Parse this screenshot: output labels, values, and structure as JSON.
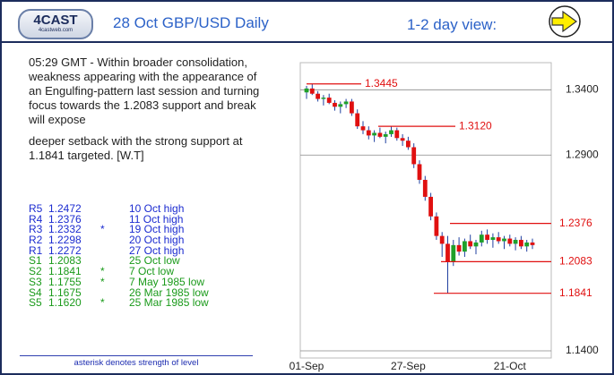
{
  "header": {
    "logo": "4CAST",
    "logo_sub": "4castweb.com",
    "title": "28 Oct GBP/USD Daily",
    "view": "1-2 day view:"
  },
  "commentary": [
    "05:29 GMT - Within broader consolidation, weakness appearing with the appearance of an Engulfing-pattern last session and turning focus towards the 1.2083 support and break will expose",
    "deeper setback with the strong support at 1.1841 targeted. [W.T]"
  ],
  "levels_table": {
    "rows": [
      {
        "level": "R5",
        "price": "1.2472",
        "note": "10 Oct high"
      },
      {
        "level": "R4",
        "price": "1.2376",
        "note": "11 Oct high"
      },
      {
        "level": "R3",
        "price": "1.2332",
        "star": "*",
        "note": "19 Oct high"
      },
      {
        "level": "R2",
        "price": "1.2298",
        "note": "20 Oct high"
      },
      {
        "level": "R1",
        "price": "1.2272",
        "note": "27 Oct high"
      },
      {
        "level": "S1",
        "price": "1.2083",
        "note": "25 Oct low"
      },
      {
        "level": "S2",
        "price": "1.1841",
        "star": "*",
        "note": "7 Oct low"
      },
      {
        "level": "S3",
        "price": "1.1755",
        "star": "*",
        "note": "7 May 1985 low"
      },
      {
        "level": "S4",
        "price": "1.1675",
        "note": "26 Mar 1985 low"
      },
      {
        "level": "S5",
        "price": "1.1620",
        "star": "*",
        "note": "25 Mar 1985 low"
      }
    ]
  },
  "footnote": "asterisk denotes strength of level",
  "chart_data": {
    "type": "candlestick",
    "categories": [
      "01-Sep",
      null,
      null,
      null,
      null,
      null,
      null,
      null,
      null,
      null,
      null,
      null,
      null,
      null,
      null,
      null,
      null,
      null,
      "27-Sep",
      null,
      null,
      null,
      null,
      null,
      null,
      null,
      null,
      null,
      null,
      null,
      null,
      null,
      null,
      null,
      null,
      null,
      "21-Oct",
      null,
      null,
      null,
      null
    ],
    "open": [
      1.338,
      1.341,
      1.337,
      1.333,
      1.334,
      1.33,
      1.327,
      1.329,
      1.331,
      1.322,
      1.312,
      1.309,
      1.305,
      1.307,
      1.304,
      1.306,
      1.309,
      1.303,
      1.301,
      1.296,
      1.283,
      1.271,
      1.258,
      1.243,
      1.228,
      1.222,
      1.208,
      1.221,
      1.216,
      1.224,
      1.22,
      1.223,
      1.229,
      1.225,
      1.227,
      1.224,
      1.226,
      1.222,
      1.225,
      1.22,
      1.223
    ],
    "high": [
      1.343,
      1.3445,
      1.339,
      1.336,
      1.337,
      1.332,
      1.331,
      1.333,
      1.333,
      1.325,
      1.316,
      1.312,
      1.309,
      1.311,
      1.308,
      1.312,
      1.311,
      1.306,
      1.304,
      1.299,
      1.286,
      1.274,
      1.261,
      1.246,
      1.231,
      1.228,
      1.225,
      1.227,
      1.226,
      1.229,
      1.225,
      1.232,
      1.233,
      1.23,
      1.231,
      1.228,
      1.229,
      1.227,
      1.228,
      1.225,
      1.226
    ],
    "low": [
      1.333,
      1.336,
      1.331,
      1.328,
      1.329,
      1.324,
      1.322,
      1.326,
      1.32,
      1.31,
      1.306,
      1.302,
      1.3,
      1.303,
      1.299,
      1.304,
      1.301,
      1.297,
      1.294,
      1.28,
      1.268,
      1.255,
      1.24,
      1.225,
      1.212,
      1.1841,
      1.205,
      1.213,
      1.212,
      1.218,
      1.214,
      1.22,
      1.222,
      1.219,
      1.222,
      1.218,
      1.22,
      1.217,
      1.218,
      1.216,
      1.218
    ],
    "close": [
      1.341,
      1.337,
      1.333,
      1.334,
      1.33,
      1.327,
      1.329,
      1.331,
      1.322,
      1.312,
      1.309,
      1.305,
      1.307,
      1.304,
      1.306,
      1.309,
      1.303,
      1.301,
      1.296,
      1.283,
      1.271,
      1.258,
      1.243,
      1.228,
      1.222,
      1.208,
      1.221,
      1.216,
      1.224,
      1.22,
      1.223,
      1.229,
      1.225,
      1.227,
      1.224,
      1.226,
      1.222,
      1.225,
      1.22,
      1.223,
      1.221
    ],
    "ylim": [
      1.1345,
      1.3608
    ],
    "yticks": [
      {
        "value": 1.34,
        "label": "1.3400"
      },
      {
        "value": 1.29,
        "label": "1.2900"
      },
      {
        "value": 1.14,
        "label": "1.1400"
      }
    ],
    "grid": true,
    "up_color": "#1fa02a",
    "down_color": "#e01010",
    "wick_color": "#2040a0",
    "level_color": "#e01010",
    "levels": [
      1.3445,
      {
        "value": 1.312,
        "label": "1.3120"
      },
      1.2376,
      1.2083,
      1.1841
    ]
  }
}
